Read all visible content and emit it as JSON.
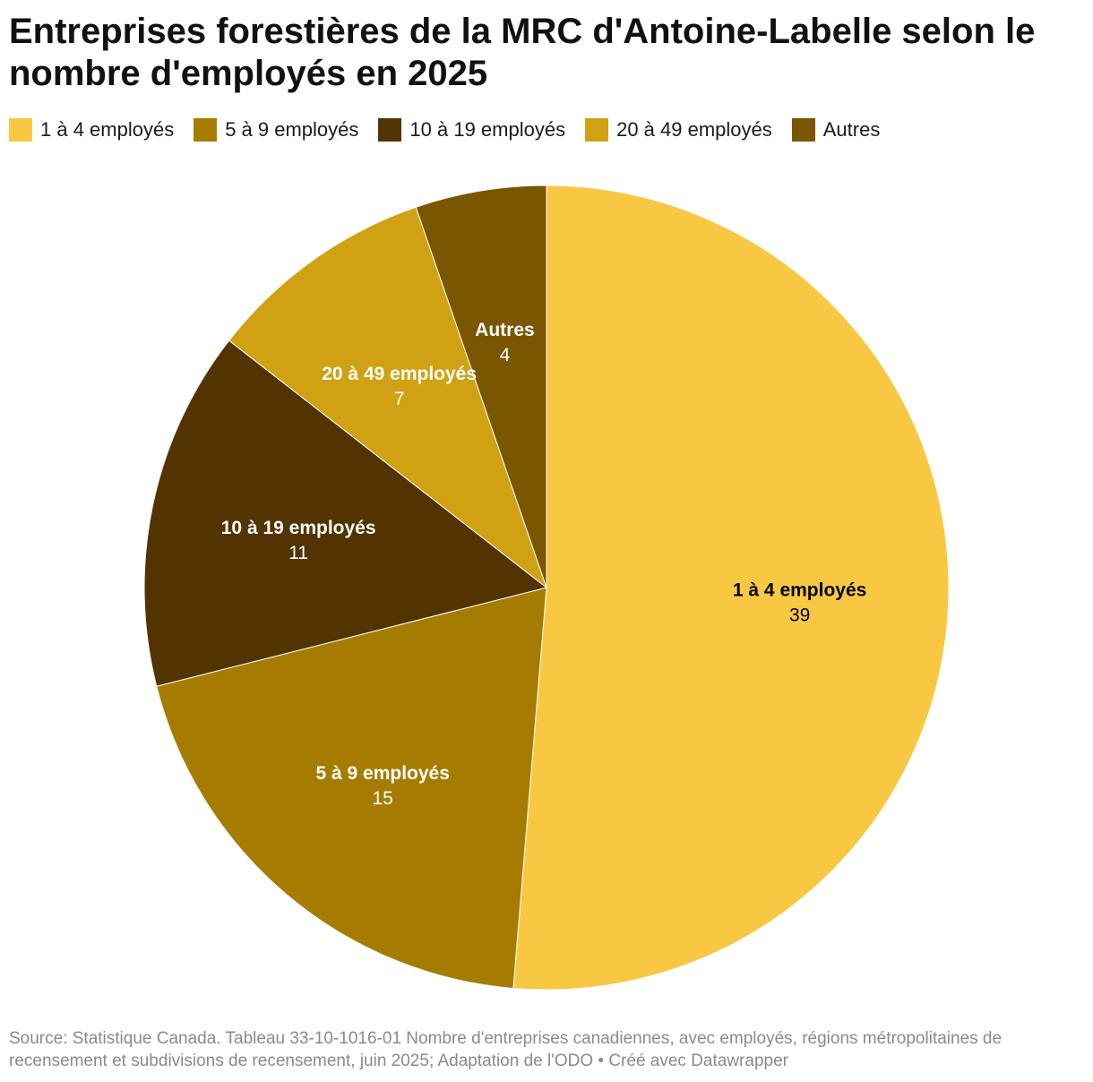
{
  "title": "Entreprises forestières de la MRC d'Antoine-Labelle selon le nombre d'employés en 2025",
  "source": "Source: Statistique Canada. Tableau 33-10-1016-01 Nombre d'entreprises canadiennes, avec employés, régions métropolitaines de recensement et subdivisions de recensement, juin 2025; Adaptation de l'ODO • Créé avec Datawrapper",
  "chart_data": {
    "type": "pie",
    "title": "Entreprises forestières de la MRC d'Antoine-Labelle selon le nombre d'employés en 2025",
    "legend_position": "top",
    "slices": [
      {
        "label": "1 à 4 employés",
        "value": 39,
        "color": "#f9c843",
        "label_color": "#000000"
      },
      {
        "label": "5 à 9 employés",
        "value": 15,
        "color": "#a67c00",
        "label_color": "#ffffff"
      },
      {
        "label": "10 à 19 employés",
        "value": 11,
        "color": "#533300",
        "label_color": "#ffffff"
      },
      {
        "label": "20 à 49 employés",
        "value": 7,
        "color": "#d0a213",
        "label_color": "#ffffff"
      },
      {
        "label": "Autres",
        "value": 4,
        "color": "#7b5600",
        "label_color": "#ffffff"
      }
    ]
  }
}
